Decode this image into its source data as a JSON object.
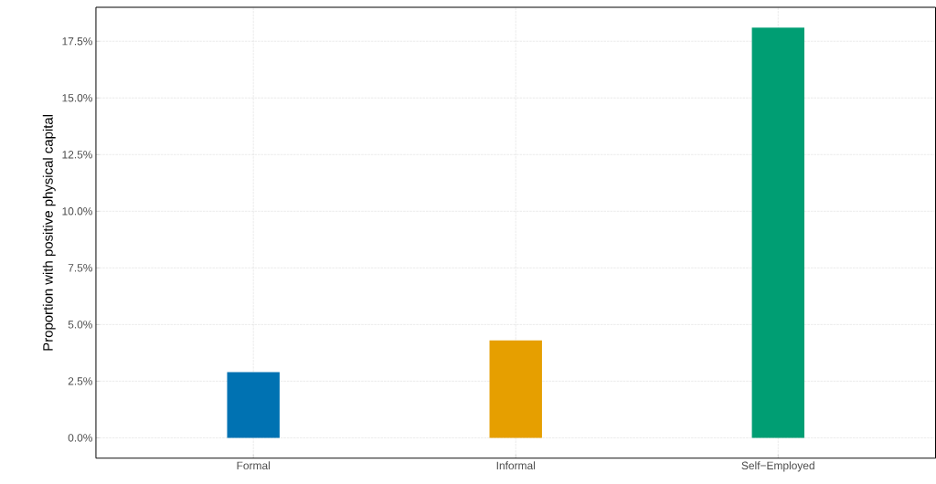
{
  "chart_data": {
    "type": "bar",
    "ylabel": "Proportion with positive physical capital",
    "categories": [
      "Formal",
      "Informal",
      "Self−Employed"
    ],
    "values": [
      2.9,
      4.3,
      18.1
    ],
    "colors": [
      "#0072b2",
      "#e69f00",
      "#009e73"
    ],
    "ylim": [
      -0.9,
      19.0
    ],
    "yticks": [
      {
        "value": 0,
        "label": "0.0%"
      },
      {
        "value": 2.5,
        "label": "2.5%"
      },
      {
        "value": 5,
        "label": "5.0%"
      },
      {
        "value": 7.5,
        "label": "7.5%"
      },
      {
        "value": 10,
        "label": "10.0%"
      },
      {
        "value": 12.5,
        "label": "12.5%"
      },
      {
        "value": 15,
        "label": "15.0%"
      },
      {
        "value": 17.5,
        "label": "17.5%"
      }
    ],
    "grid": true
  }
}
